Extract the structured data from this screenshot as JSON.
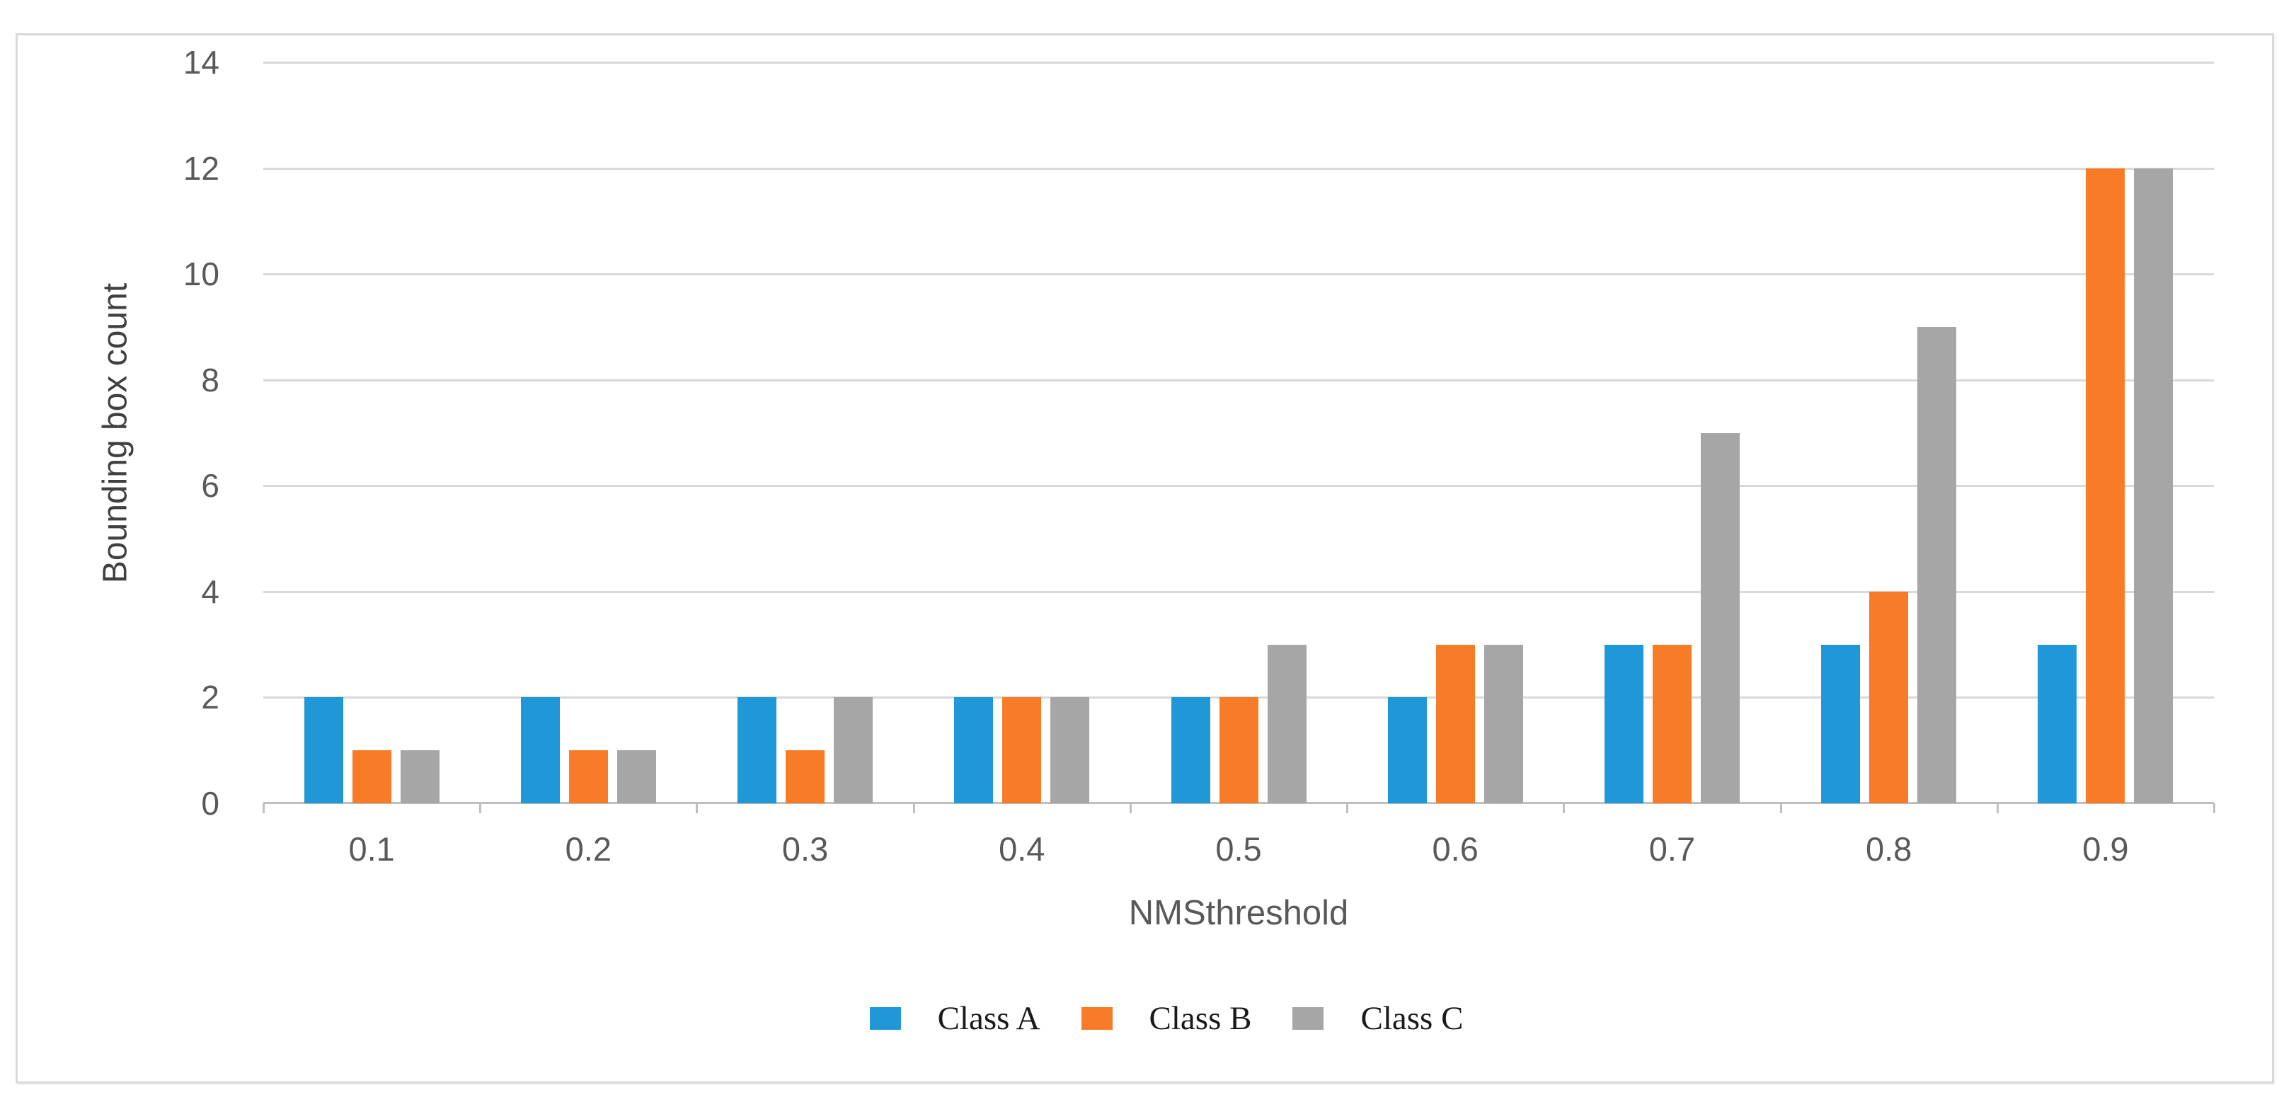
{
  "figure": {
    "background": "#ffffff",
    "frame_border_color": "#d9d9d9"
  },
  "chart_data": {
    "type": "bar",
    "title": "",
    "xlabel": "NMSthreshold",
    "ylabel": "Bounding box count",
    "categories": [
      "0.1",
      "0.2",
      "0.3",
      "0.4",
      "0.5",
      "0.6",
      "0.7",
      "0.8",
      "0.9"
    ],
    "series": [
      {
        "name": "Class A",
        "color": "#2098D7",
        "values": [
          2,
          2,
          2,
          2,
          2,
          2,
          3,
          3,
          3
        ]
      },
      {
        "name": "Class B",
        "color": "#F87C28",
        "values": [
          1,
          1,
          1,
          2,
          2,
          3,
          3,
          4,
          12
        ]
      },
      {
        "name": "Class C",
        "color": "#A6A6A6",
        "values": [
          1,
          1,
          2,
          2,
          3,
          3,
          7,
          9,
          12
        ]
      }
    ],
    "ylim": [
      0,
      14
    ],
    "ytick_step": 2,
    "yticks": [
      0,
      2,
      4,
      6,
      8,
      10,
      12,
      14
    ],
    "grid": true,
    "gridline_color": "#d9d9d9",
    "axis_line_color": "#bfbfbf",
    "axis_text_color": "#595959",
    "legend_position": "bottom"
  }
}
